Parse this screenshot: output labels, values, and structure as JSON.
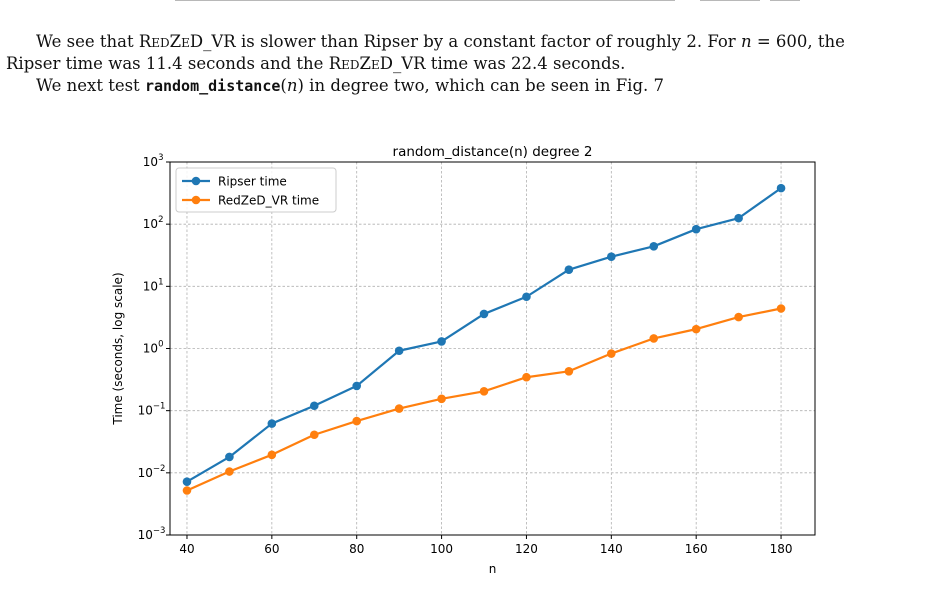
{
  "text": {
    "para1_a": "We see that ",
    "para1_method": "RedZeD_VR",
    "para1_b": " is slower than Ripser by a constant factor of roughly 2. For ",
    "para1_n": "n",
    "para1_c": " = 600, the",
    "para2_a": "Ripser time was 11.4 seconds and the ",
    "para2_method": "RedZeD_VR",
    "para2_b": " time was 22.4 seconds.",
    "para3_a": "We next test ",
    "para3_code": "random_distance",
    "para3_b": "(",
    "para3_n": "n",
    "para3_c": ") in degree two, which can be seen in Fig. 7"
  },
  "chart_data": {
    "type": "line",
    "title": "random_distance(n) degree 2",
    "xlabel": "n",
    "ylabel": "Time (seconds, log scale)",
    "yscale": "log",
    "xlim": [
      36,
      188
    ],
    "ylim": [
      0.001,
      1000
    ],
    "xticks": [
      40,
      60,
      80,
      100,
      120,
      140,
      160,
      180
    ],
    "yticks": [
      {
        "value": 0.001,
        "base": "10",
        "exp": "−3"
      },
      {
        "value": 0.01,
        "base": "10",
        "exp": "−2"
      },
      {
        "value": 0.1,
        "base": "10",
        "exp": "−1"
      },
      {
        "value": 1,
        "base": "10",
        "exp": "0"
      },
      {
        "value": 10,
        "base": "10",
        "exp": "1"
      },
      {
        "value": 100,
        "base": "10",
        "exp": "2"
      },
      {
        "value": 1000,
        "base": "10",
        "exp": "3"
      }
    ],
    "grid": true,
    "legend_position": "top-left",
    "x": [
      40,
      50,
      60,
      70,
      80,
      90,
      100,
      110,
      120,
      130,
      140,
      150,
      160,
      170,
      180
    ],
    "series": [
      {
        "name": "Ripser time",
        "color": "#1f77b4",
        "values": [
          0.0072,
          0.018,
          0.062,
          0.12,
          0.25,
          0.92,
          1.3,
          3.6,
          6.8,
          18.5,
          30,
          44,
          83,
          125,
          380
        ]
      },
      {
        "name": "RedZeD_VR time",
        "color": "#ff7f0e",
        "values": [
          0.0052,
          0.0105,
          0.0195,
          0.041,
          0.068,
          0.108,
          0.155,
          0.205,
          0.345,
          0.43,
          0.83,
          1.45,
          2.05,
          3.2,
          4.4
        ]
      }
    ]
  }
}
